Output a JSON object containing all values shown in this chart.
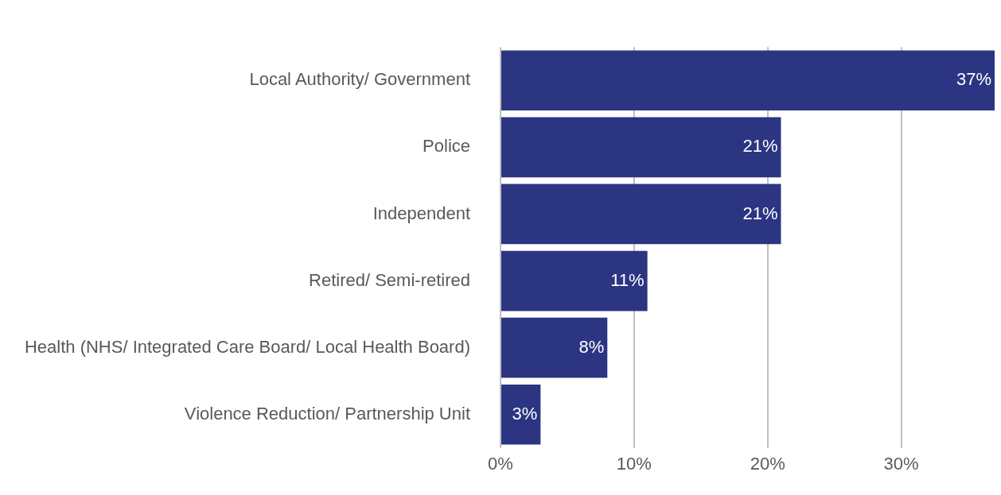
{
  "chart_data": {
    "type": "bar",
    "orientation": "horizontal",
    "categories": [
      "Local Authority/ Government",
      "Police",
      "Independent",
      "Retired/ Semi-retired",
      "Health (NHS/ Integrated Care Board/ Local Health Board)",
      "Violence Reduction/ Partnership Unit"
    ],
    "values": [
      37,
      21,
      21,
      11,
      8,
      3
    ],
    "color": "#2b3582",
    "xlim": [
      0,
      37
    ],
    "xticks": [
      {
        "value": 0,
        "label": "0%"
      },
      {
        "value": 10,
        "label": "10%"
      },
      {
        "value": 20,
        "label": "20%"
      },
      {
        "value": 30,
        "label": "30%"
      }
    ],
    "value_labels": [
      "37%",
      "21%",
      "21%",
      "11%",
      "8%",
      "3%"
    ],
    "grid": "x",
    "legend": false
  }
}
